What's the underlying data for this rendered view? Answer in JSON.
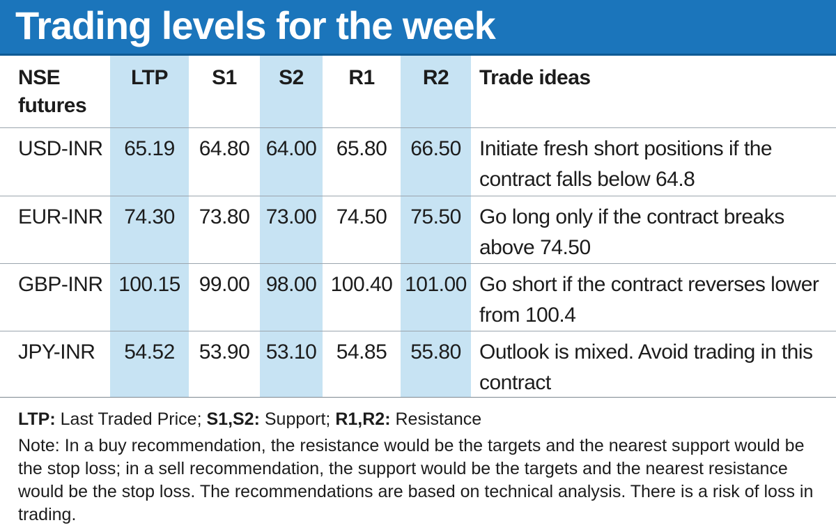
{
  "title": "Trading levels for the week",
  "colors": {
    "title_bg": "#1b75bb",
    "title_text": "#ffffff",
    "column_band": "#c7e3f3",
    "text": "#1c1c1c"
  },
  "table": {
    "headers": {
      "nse": "NSE futures",
      "ltp": "LTP",
      "s1": "S1",
      "s2": "S2",
      "r1": "R1",
      "r2": "R2",
      "ideas": "Trade ideas"
    },
    "rows": [
      {
        "name": "USD-INR",
        "ltp": "65.19",
        "s1": "64.80",
        "s2": "64.00",
        "r1": "65.80",
        "r2": "66.50",
        "idea": "Initiate fresh short positions if the contract falls below 64.8"
      },
      {
        "name": "EUR-INR",
        "ltp": "74.30",
        "s1": "73.80",
        "s2": "73.00",
        "r1": "74.50",
        "r2": "75.50",
        "idea": "Go long only if the contract breaks above 74.50"
      },
      {
        "name": "GBP-INR",
        "ltp": "100.15",
        "s1": "99.00",
        "s2": "98.00",
        "r1": "100.40",
        "r2": "101.00",
        "idea": "Go short if the contract reverses lower from 100.4"
      },
      {
        "name": "JPY-INR",
        "ltp": "54.52",
        "s1": "53.90",
        "s2": "53.10",
        "r1": "54.85",
        "r2": "55.80",
        "idea": "Outlook is mixed. Avoid trading in this contract"
      }
    ]
  },
  "legend": {
    "ltp_key": "LTP:",
    "ltp_val": "Last Traded Price;",
    "s_key": "S1,S2:",
    "s_val": "Support;",
    "r_key": "R1,R2:",
    "r_val": "Resistance"
  },
  "note": "Note: In a buy recommendation, the resistance would be the targets and the nearest support would be the stop loss; in a sell recommendation, the support would be the targets and the nearest resistance would be the stop loss. The recommendations are based on technical analysis. There is a risk of loss in trading."
}
